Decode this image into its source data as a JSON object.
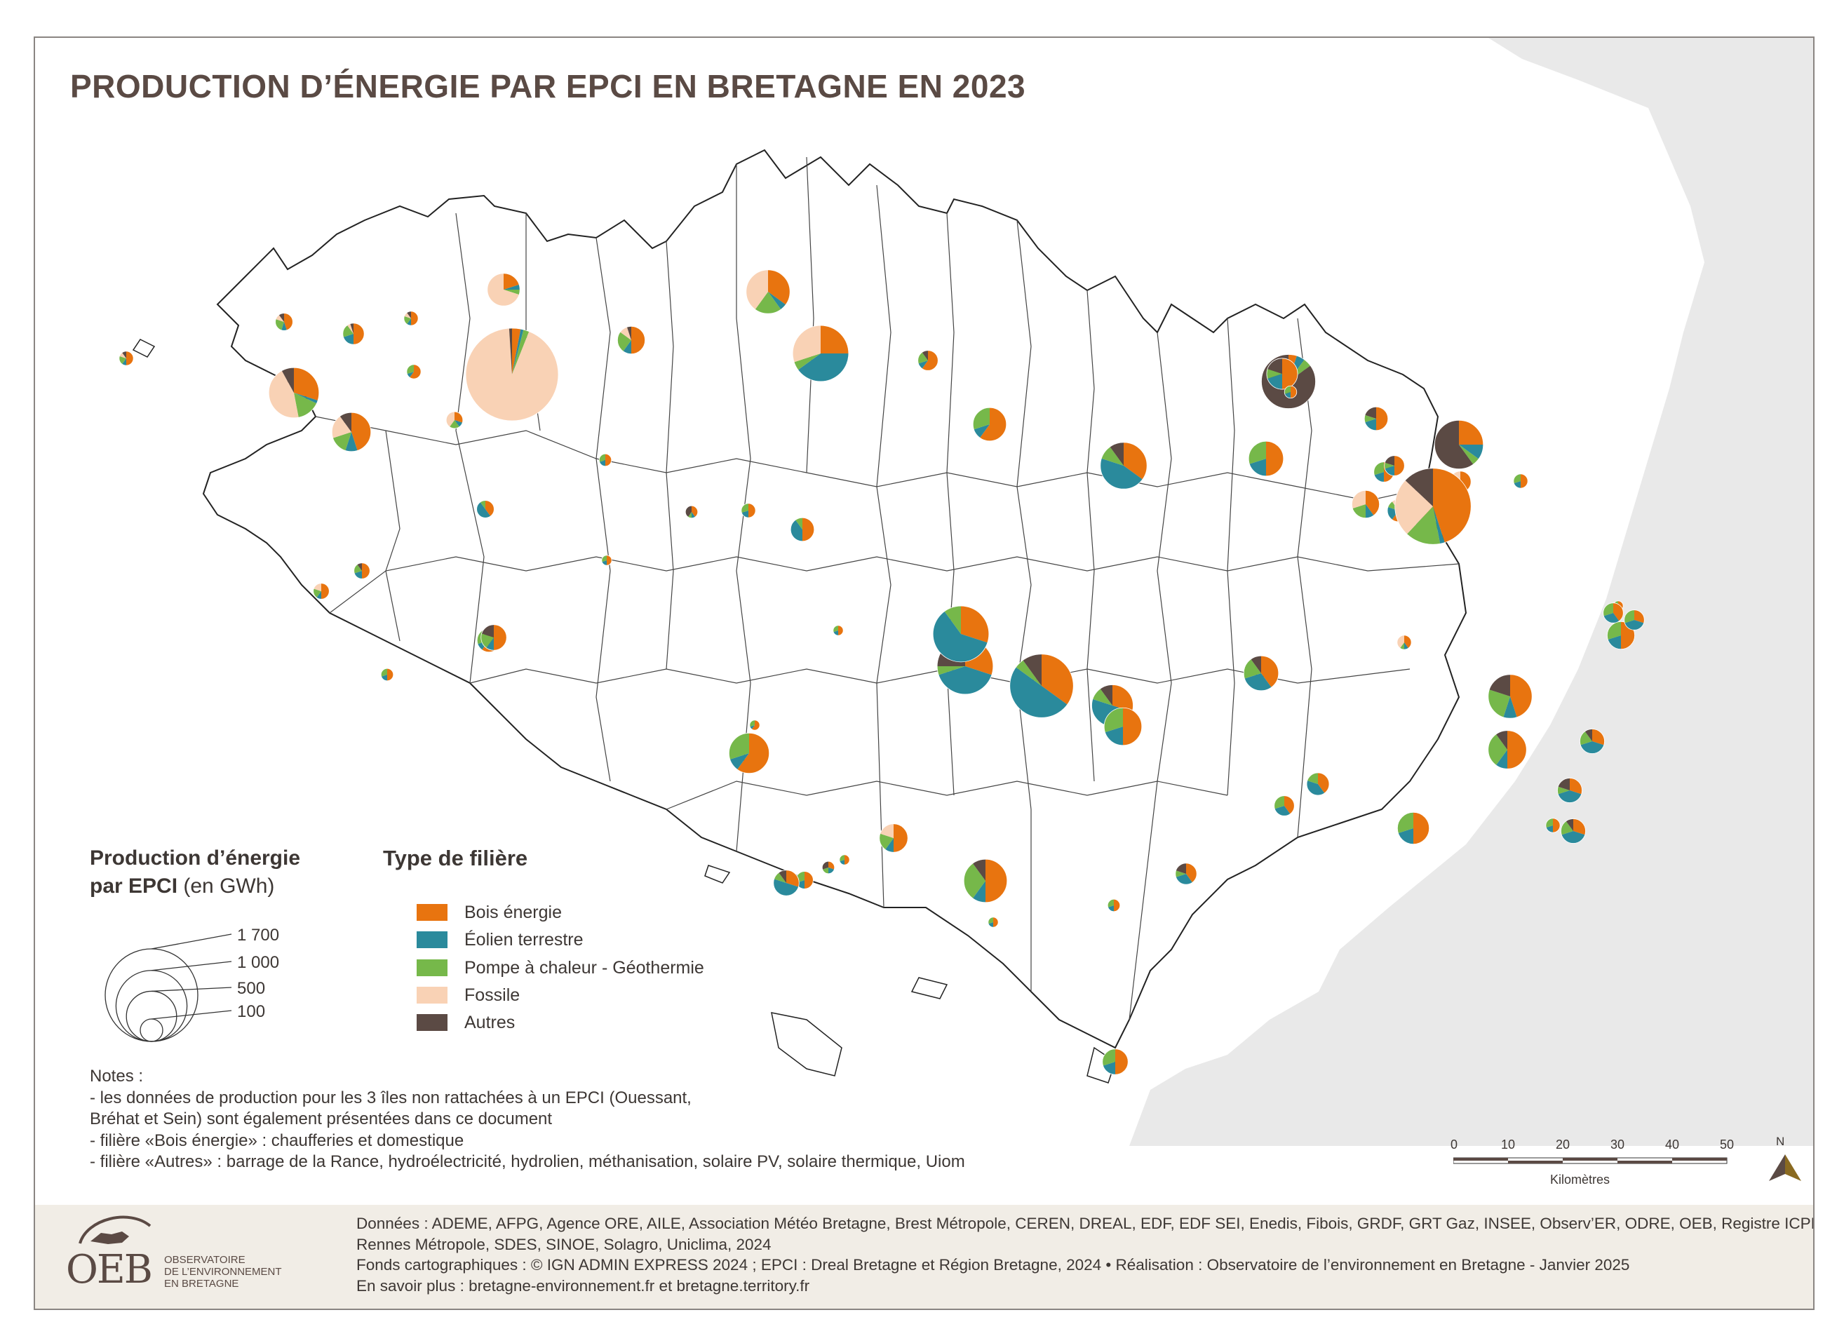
{
  "title": "PRODUCTION D’ÉNERGIE PAR EPCI EN BRETAGNE EN 2023",
  "colors": {
    "bois": "#e8740f",
    "eolien": "#2a8a9c",
    "pac": "#76b84a",
    "fossile": "#f9d2b5",
    "autres": "#5b4a44",
    "sea": "#e9e9e9",
    "border": "#222222"
  },
  "size_legend": {
    "title_bold_1": "Production d’énergie",
    "title_bold_2": "par EPCI",
    "title_unit": " (en GWh)",
    "values": [
      {
        "label": "1 700",
        "gwh": 1700
      },
      {
        "label": "1 000",
        "gwh": 1000
      },
      {
        "label": "500",
        "gwh": 500
      },
      {
        "label": "100",
        "gwh": 100
      }
    ]
  },
  "type_legend": {
    "title": "Type de filière",
    "items": [
      {
        "key": "bois",
        "label": "Bois énergie"
      },
      {
        "key": "eolien",
        "label": "Éolien terrestre"
      },
      {
        "key": "pac",
        "label": "Pompe à chaleur - Géothermie"
      },
      {
        "key": "fossile",
        "label": "Fossile"
      },
      {
        "key": "autres",
        "label": "Autres"
      }
    ]
  },
  "notes": [
    "Notes :",
    "- les données de production pour les 3 îles non rattachées à un EPCI (Ouessant,",
    "Bréhat et Sein) sont également présentées dans ce document",
    "- filière «Bois énergie» : chaufferies et domestique",
    "- filière «Autres» : barrage de la Rance, hydroélectricité, hydrolien, méthanisation, solaire PV, solaire thermique, Uiom"
  ],
  "scale": {
    "ticks": [
      "0",
      "10",
      "20",
      "30",
      "40",
      "50"
    ],
    "unit": "Kilomètres",
    "north": "N"
  },
  "footer": {
    "lines": [
      "Données : ADEME, AFPG, Agence ORE, AILE, Association Météo Bretagne, Brest Métropole, CEREN, DREAL, EDF, EDF SEI, Enedis, Fibois, GRDF, GRT Gaz, INSEE, Observ’ER, ODRE, OEB, Registre ICPE,",
      "Rennes Métropole, SDES, SINOE, Solagro, Uniclima, 2024",
      "Fonds cartographiques : © IGN ADMIN EXPRESS 2024 ; EPCI : Dreal Bretagne et Région Bretagne, 2024 • Réalisation : Observatoire de l’environnement en Bretagne - Janvier 2025",
      "En savoir plus : bretagne-environnement.fr et bretagne.territory.fr"
    ],
    "logo_letters": "OEB",
    "logo_sub": [
      "OBSERVATOIRE",
      "DE L’ENVIRONNEMENT",
      "EN BRETAGNE"
    ]
  },
  "pies": [
    {
      "total": 40,
      "shares": [
        0.5,
        0.1,
        0.2,
        0.1,
        0.1
      ]
    },
    {
      "total": 300,
      "shares": [
        0.45,
        0.1,
        0.15,
        0.2,
        0.1
      ]
    },
    {
      "total": 90,
      "shares": [
        0.5,
        0.2,
        0.2,
        0.05,
        0.05
      ]
    },
    {
      "total": 60,
      "shares": [
        0.45,
        0.1,
        0.25,
        0.1,
        0.1
      ]
    },
    {
      "total": 500,
      "shares": [
        0.3,
        0.02,
        0.15,
        0.45,
        0.08
      ]
    },
    {
      "total": 210,
      "shares": [
        0.2,
        0.05,
        0.05,
        0.7,
        0.0
      ]
    },
    {
      "total": 1700,
      "shares": [
        0.03,
        0.01,
        0.02,
        0.93,
        0.01
      ]
    },
    {
      "total": 55,
      "shares": [
        0.3,
        0.1,
        0.2,
        0.4,
        0.0
      ]
    },
    {
      "total": 150,
      "shares": [
        0.5,
        0.1,
        0.25,
        0.1,
        0.05
      ]
    },
    {
      "total": 380,
      "shares": [
        0.35,
        0.05,
        0.2,
        0.4,
        0.0
      ]
    },
    {
      "total": 620,
      "shares": [
        0.25,
        0.4,
        0.05,
        0.3,
        0.0
      ]
    },
    {
      "total": 80,
      "shares": [
        0.6,
        0.1,
        0.2,
        0.0,
        0.1
      ]
    },
    {
      "total": 40,
      "shares": [
        0.5,
        0.1,
        0.2,
        0.1,
        0.1
      ]
    },
    {
      "total": 40,
      "shares": [
        0.6,
        0.1,
        0.3,
        0.0,
        0.0
      ]
    },
    {
      "total": 60,
      "shares": [
        0.4,
        0.5,
        0.1,
        0.0,
        0.0
      ]
    },
    {
      "total": 30,
      "shares": [
        0.5,
        0.2,
        0.3,
        0.0,
        0.0
      ]
    },
    {
      "total": 30,
      "shares": [
        0.4,
        0.1,
        0.1,
        0.0,
        0.4
      ]
    },
    {
      "total": 110,
      "shares": [
        0.5,
        0.4,
        0.1,
        0.0,
        0.0
      ]
    },
    {
      "total": 220,
      "shares": [
        0.6,
        0.1,
        0.3,
        0.0,
        0.0
      ]
    },
    {
      "total": 430,
      "shares": [
        0.35,
        0.45,
        0.1,
        0.0,
        0.1
      ]
    },
    {
      "total": 240,
      "shares": [
        0.5,
        0.2,
        0.3,
        0.0,
        0.0
      ]
    },
    {
      "total": 470,
      "shares": [
        0.25,
        0.1,
        0.05,
        0.0,
        0.6
      ]
    },
    {
      "total": 100,
      "shares": [
        0.6,
        0.2,
        0.1,
        0.1,
        0.0
      ]
    },
    {
      "total": 20,
      "shares": [
        0.5,
        0.2,
        0.3,
        0.0,
        0.0
      ]
    },
    {
      "total": 50,
      "shares": [
        0.5,
        0.2,
        0.2,
        0.0,
        0.1
      ]
    },
    {
      "total": 50,
      "shares": [
        0.5,
        0.1,
        0.2,
        0.2,
        0.0
      ]
    },
    {
      "total": 20,
      "shares": [
        0.5,
        0.2,
        0.3,
        0.0,
        0.0
      ]
    },
    {
      "total": 110,
      "shares": [
        0.6,
        0.1,
        0.2,
        0.0,
        0.1
      ]
    },
    {
      "total": 30,
      "shares": [
        0.5,
        0.2,
        0.3,
        0.0,
        0.0
      ]
    },
    {
      "total": 20,
      "shares": [
        0.5,
        0.2,
        0.3,
        0.0,
        0.0
      ]
    },
    {
      "total": 40,
      "shares": [
        0.5,
        0.2,
        0.3,
        0.0,
        0.0
      ]
    },
    {
      "total": 130,
      "shares": [
        0.5,
        0.1,
        0.2,
        0.0,
        0.2
      ]
    },
    {
      "total": 30,
      "shares": [
        0.3,
        0.2,
        0.2,
        0.0,
        0.3
      ]
    },
    {
      "total": 60,
      "shares": [
        0.5,
        0.2,
        0.3,
        0.0,
        0.0
      ]
    },
    {
      "total": 160,
      "shares": [
        0.5,
        0.1,
        0.2,
        0.2,
        0.0
      ]
    },
    {
      "total": 370,
      "shares": [
        0.5,
        0.1,
        0.3,
        0.0,
        0.1
      ]
    },
    {
      "total": 20,
      "shares": [
        0.5,
        0.2,
        0.3,
        0.0,
        0.0
      ]
    },
    {
      "total": 30,
      "shares": [
        0.5,
        0.2,
        0.3,
        0.0,
        0.0
      ]
    },
    {
      "total": 130,
      "shares": [
        0.5,
        0.2,
        0.3,
        0.0,
        0.0
      ]
    },
    {
      "total": 320,
      "shares": [
        0.6,
        0.1,
        0.3,
        0.0,
        0.0
      ]
    },
    {
      "total": 20,
      "shares": [
        0.6,
        0.1,
        0.3,
        0.0,
        0.0
      ]
    },
    {
      "total": 130,
      "shares": [
        0.3,
        0.5,
        0.1,
        0.0,
        0.1
      ]
    },
    {
      "total": 620,
      "shares": [
        0.3,
        0.4,
        0.05,
        0.0,
        0.25
      ]
    },
    {
      "total": 620,
      "shares": [
        0.3,
        0.6,
        0.1,
        0.0,
        0.0
      ]
    },
    {
      "total": 800,
      "shares": [
        0.35,
        0.5,
        0.05,
        0.0,
        0.1
      ]
    },
    {
      "total": 340,
      "shares": [
        0.3,
        0.5,
        0.1,
        0.0,
        0.1
      ]
    },
    {
      "total": 280,
      "shares": [
        0.5,
        0.2,
        0.3,
        0.0,
        0.0
      ]
    },
    {
      "total": 90,
      "shares": [
        0.4,
        0.3,
        0.1,
        0.0,
        0.2
      ]
    },
    {
      "total": 240,
      "shares": [
        0.4,
        0.3,
        0.2,
        0.0,
        0.1
      ]
    },
    {
      "total": 80,
      "shares": [
        0.4,
        0.3,
        0.3,
        0.0,
        0.0
      ]
    },
    {
      "total": 100,
      "shares": [
        0.4,
        0.4,
        0.2,
        0.0,
        0.0
      ]
    },
    {
      "total": 290,
      "shares": [
        0.5,
        0.1,
        0.3,
        0.0,
        0.1
      ]
    },
    {
      "total": 580,
      "shares": [
        0.05,
        0.05,
        0.05,
        0.0,
        0.85
      ]
    },
    {
      "total": 190,
      "shares": [
        0.5,
        0.2,
        0.1,
        0.0,
        0.2
      ]
    },
    {
      "total": 30,
      "shares": [
        0.5,
        0.2,
        0.3,
        0.0,
        0.0
      ]
    },
    {
      "total": 110,
      "shares": [
        0.5,
        0.2,
        0.1,
        0.0,
        0.2
      ]
    },
    {
      "total": 80,
      "shares": [
        0.5,
        0.2,
        0.3,
        0.0,
        0.0
      ]
    },
    {
      "total": 150,
      "shares": [
        0.5,
        0.1,
        0.2,
        0.0,
        0.2
      ]
    },
    {
      "total": 90,
      "shares": [
        0.4,
        0.1,
        0.2,
        0.3,
        0.0
      ]
    },
    {
      "total": 40,
      "shares": [
        0.5,
        0.2,
        0.3,
        0.0,
        0.0
      ]
    },
    {
      "total": 150,
      "shares": [
        0.4,
        0.1,
        0.2,
        0.3,
        0.0
      ]
    },
    {
      "total": 80,
      "shares": [
        0.5,
        0.2,
        0.1,
        0.0,
        0.2
      ]
    },
    {
      "total": 1150,
      "shares": [
        0.45,
        0.02,
        0.15,
        0.25,
        0.13
      ]
    },
    {
      "total": 40,
      "shares": [
        0.4,
        0.1,
        0.1,
        0.4,
        0.0
      ]
    },
    {
      "total": 380,
      "shares": [
        0.45,
        0.1,
        0.25,
        0.0,
        0.2
      ]
    },
    {
      "total": 120,
      "shares": [
        0.3,
        0.4,
        0.1,
        0.0,
        0.2
      ]
    },
    {
      "total": 40,
      "shares": [
        0.5,
        0.2,
        0.3,
        0.0,
        0.0
      ]
    },
    {
      "total": 120,
      "shares": [
        0.3,
        0.4,
        0.2,
        0.0,
        0.1
      ]
    },
    {
      "total": 200,
      "shares": [
        0.5,
        0.2,
        0.3,
        0.0,
        0.0
      ]
    },
    {
      "total": 120,
      "shares": [
        0.3,
        0.4,
        0.2,
        0.0,
        0.1
      ]
    },
    {
      "total": 150,
      "shares": [
        0.5,
        0.2,
        0.3,
        0.0,
        0.0
      ]
    },
    {
      "total": 80,
      "shares": [
        0.3,
        0.4,
        0.3,
        0.0,
        0.0
      ]
    },
    {
      "total": 20,
      "shares": [
        0.5,
        0.2,
        0.3,
        0.0,
        0.0
      ]
    },
    {
      "total": 80,
      "shares": [
        0.4,
        0.3,
        0.3,
        0.0,
        0.0
      ]
    }
  ]
}
